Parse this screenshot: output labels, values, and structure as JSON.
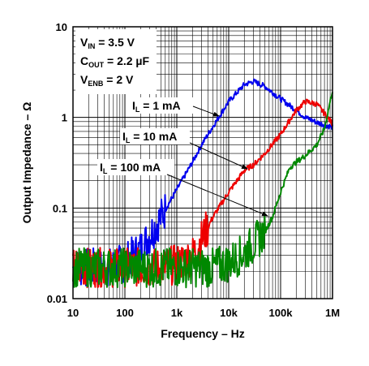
{
  "chart_data": {
    "type": "line",
    "xlabel": "Frequency – Hz",
    "ylabel": "Output Impedance – Ω",
    "x_scale": "log",
    "y_scale": "log",
    "xlim": [
      10,
      1000000
    ],
    "ylim": [
      0.01,
      10
    ],
    "grid": true,
    "x_ticks": [
      {
        "value": 10,
        "label": "10"
      },
      {
        "value": 100,
        "label": "100"
      },
      {
        "value": 1000,
        "label": "1k"
      },
      {
        "value": 10000,
        "label": "10k"
      },
      {
        "value": 100000,
        "label": "100k"
      },
      {
        "value": 1000000,
        "label": "1M"
      }
    ],
    "y_ticks": [
      {
        "value": 0.01,
        "label": "0.01"
      },
      {
        "value": 0.1,
        "label": "0.1"
      },
      {
        "value": 1,
        "label": "1"
      },
      {
        "value": 10,
        "label": "10"
      }
    ],
    "conditions": [
      {
        "main": "V",
        "sub": "IN",
        "rest": " = 3.5 V"
      },
      {
        "main": "C",
        "sub": "OUT",
        "rest": " = 2.2 µF"
      },
      {
        "main": "V",
        "sub": "ENB",
        "rest": " = 2 V"
      }
    ],
    "series": [
      {
        "label_main": "I",
        "label_sub": "L",
        "label_rest": " = 1 mA",
        "color": "#0000ee",
        "x": [
          10,
          50,
          100,
          200,
          300,
          500,
          1000,
          2000,
          3000,
          5000,
          10000,
          20000,
          30000,
          50000,
          100000,
          200000,
          300000,
          500000,
          700000,
          1000000
        ],
        "y": [
          0.022,
          0.022,
          0.025,
          0.035,
          0.05,
          0.08,
          0.16,
          0.32,
          0.5,
          0.8,
          1.5,
          2.3,
          2.5,
          2.2,
          1.6,
          1.2,
          1.0,
          0.88,
          0.83,
          0.78
        ],
        "noise_until": 600
      },
      {
        "label_main": "I",
        "label_sub": "L",
        "label_rest": " = 10 mA",
        "color": "#ee0000",
        "x": [
          10,
          100,
          500,
          1000,
          2000,
          3000,
          5000,
          10000,
          20000,
          30000,
          50000,
          100000,
          200000,
          300000,
          500000,
          700000,
          1000000
        ],
        "y": [
          0.022,
          0.022,
          0.022,
          0.024,
          0.03,
          0.045,
          0.08,
          0.15,
          0.26,
          0.3,
          0.4,
          0.65,
          1.2,
          1.5,
          1.4,
          1.1,
          0.85
        ],
        "noise_until": 4000
      },
      {
        "label_main": "I",
        "label_sub": "L",
        "label_rest": " = 100 mA",
        "color": "#008800",
        "x": [
          10,
          100,
          1000,
          5000,
          10000,
          20000,
          30000,
          50000,
          70000,
          100000,
          150000,
          200000,
          300000,
          500000,
          700000,
          1000000
        ],
        "y": [
          0.022,
          0.022,
          0.022,
          0.022,
          0.025,
          0.032,
          0.04,
          0.055,
          0.08,
          0.15,
          0.28,
          0.32,
          0.38,
          0.5,
          0.75,
          2.0
        ],
        "noise_until": 50000
      }
    ]
  }
}
